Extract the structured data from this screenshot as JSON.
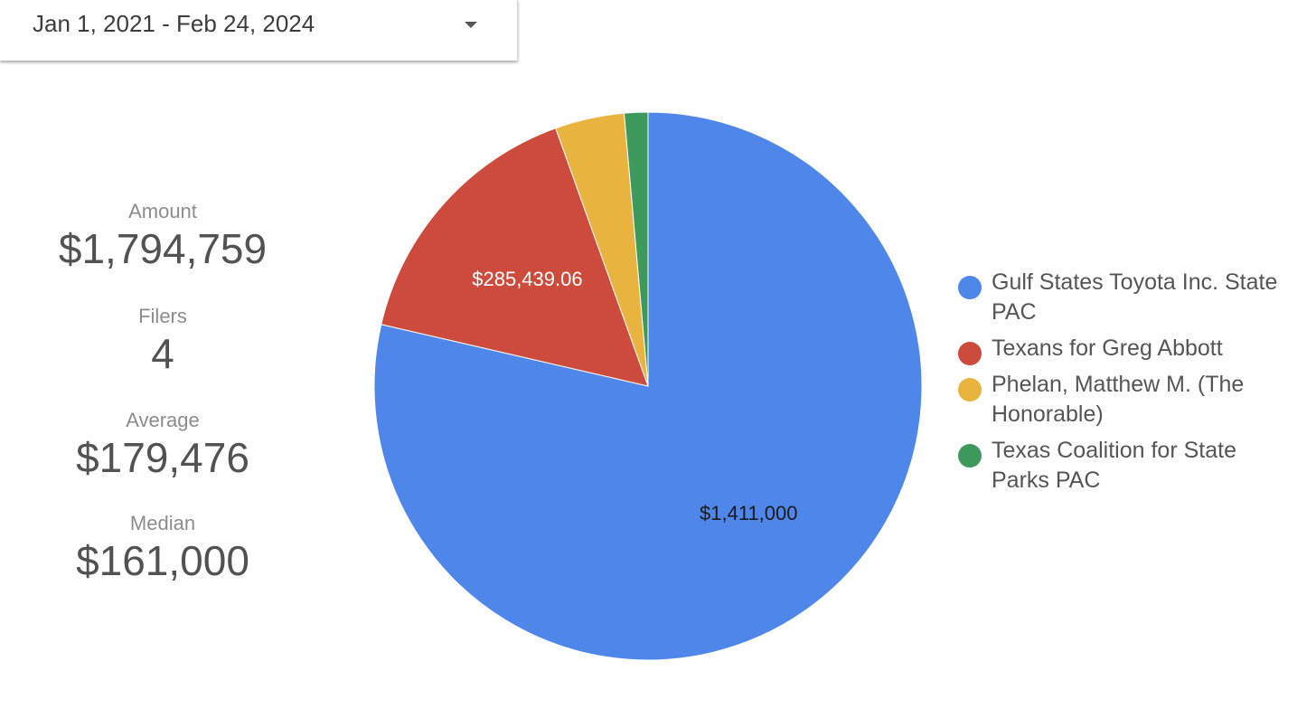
{
  "date_range": {
    "label": "Jan 1, 2021 - Feb 24, 2024"
  },
  "metrics": [
    {
      "label": "Amount",
      "value": "$1,794,759"
    },
    {
      "label": "Filers",
      "value": "4"
    },
    {
      "label": "Average",
      "value": "$179,476"
    },
    {
      "label": "Median",
      "value": "$161,000"
    }
  ],
  "chart_data": {
    "type": "pie",
    "title": "",
    "slices": [
      {
        "label": "Gulf States Toyota Inc. State PAC",
        "value": 1411000,
        "data_label": "$1,411,000",
        "color": "#4f86ea",
        "label_color": "#1a1a1a"
      },
      {
        "label": "Texans for Greg Abbott",
        "value": 285439.06,
        "data_label": "$285,439.06",
        "color": "#cc4b3d",
        "label_color": "#ffffff"
      },
      {
        "label": "Phelan, Matthew M. (The Honorable)",
        "value": 73320,
        "data_label": "",
        "color": "#e8b33e",
        "label_color": "#1a1a1a"
      },
      {
        "label": "Texas Coalition for State Parks PAC",
        "value": 25000,
        "data_label": "",
        "color": "#3d9a5c",
        "label_color": "#1a1a1a"
      }
    ],
    "legend_position": "right"
  }
}
